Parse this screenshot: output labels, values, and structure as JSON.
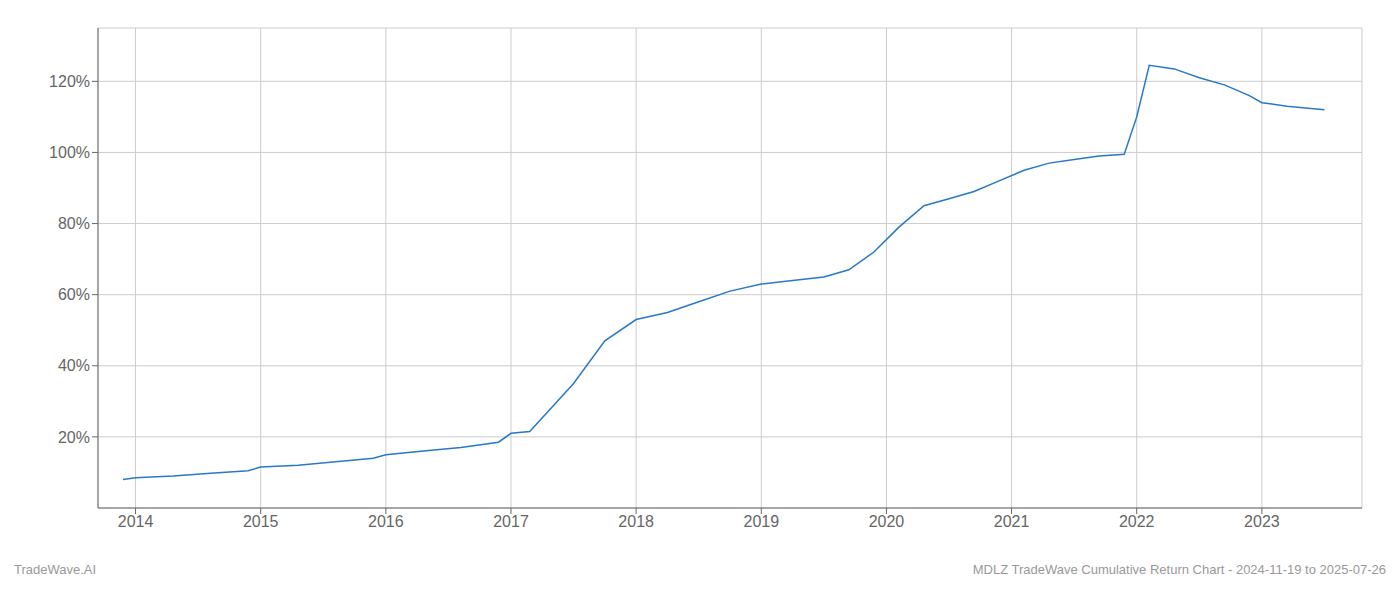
{
  "chart_data": {
    "type": "line",
    "x": [
      2013.9,
      2014.0,
      2014.3,
      2014.6,
      2014.9,
      2015.0,
      2015.3,
      2015.6,
      2015.9,
      2016.0,
      2016.3,
      2016.6,
      2016.9,
      2017.0,
      2017.15,
      2017.5,
      2017.75,
      2018.0,
      2018.25,
      2018.5,
      2018.75,
      2019.0,
      2019.25,
      2019.5,
      2019.7,
      2019.9,
      2020.1,
      2020.3,
      2020.5,
      2020.7,
      2020.9,
      2021.1,
      2021.3,
      2021.5,
      2021.7,
      2021.9,
      2022.0,
      2022.1,
      2022.3,
      2022.5,
      2022.7,
      2022.9,
      2023.0,
      2023.2,
      2023.5
    ],
    "values": [
      8,
      8.5,
      9.0,
      9.8,
      10.5,
      11.5,
      12.0,
      13.0,
      14.0,
      15.0,
      16.0,
      17.0,
      18.5,
      21.0,
      21.5,
      35.0,
      47.0,
      53.0,
      55.0,
      58.0,
      61.0,
      63.0,
      64.0,
      65.0,
      67.0,
      72.0,
      79.0,
      85.0,
      87.0,
      89.0,
      92.0,
      95.0,
      97.0,
      98.0,
      99.0,
      99.5,
      110.0,
      124.5,
      123.5,
      121.0,
      119.0,
      116.0,
      114.0,
      113.0,
      112.0
    ],
    "color": "#2878c8",
    "xlim": [
      2013.7,
      2023.8
    ],
    "xticks": [
      2014,
      2015,
      2016,
      2017,
      2018,
      2019,
      2020,
      2021,
      2022,
      2023
    ],
    "ylim": [
      0,
      135
    ],
    "yticks": [
      {
        "value": 20,
        "label": "20%"
      },
      {
        "value": 40,
        "label": "40%"
      },
      {
        "value": 60,
        "label": "60%"
      },
      {
        "value": 80,
        "label": "80%"
      },
      {
        "value": 100,
        "label": "100%"
      },
      {
        "value": 120,
        "label": "120%"
      }
    ],
    "grid": true,
    "annotations": [
      "TradeWave.AI",
      "MDLZ TradeWave Cumulative Return Chart - 2024-11-19 to 2025-07-26"
    ]
  }
}
